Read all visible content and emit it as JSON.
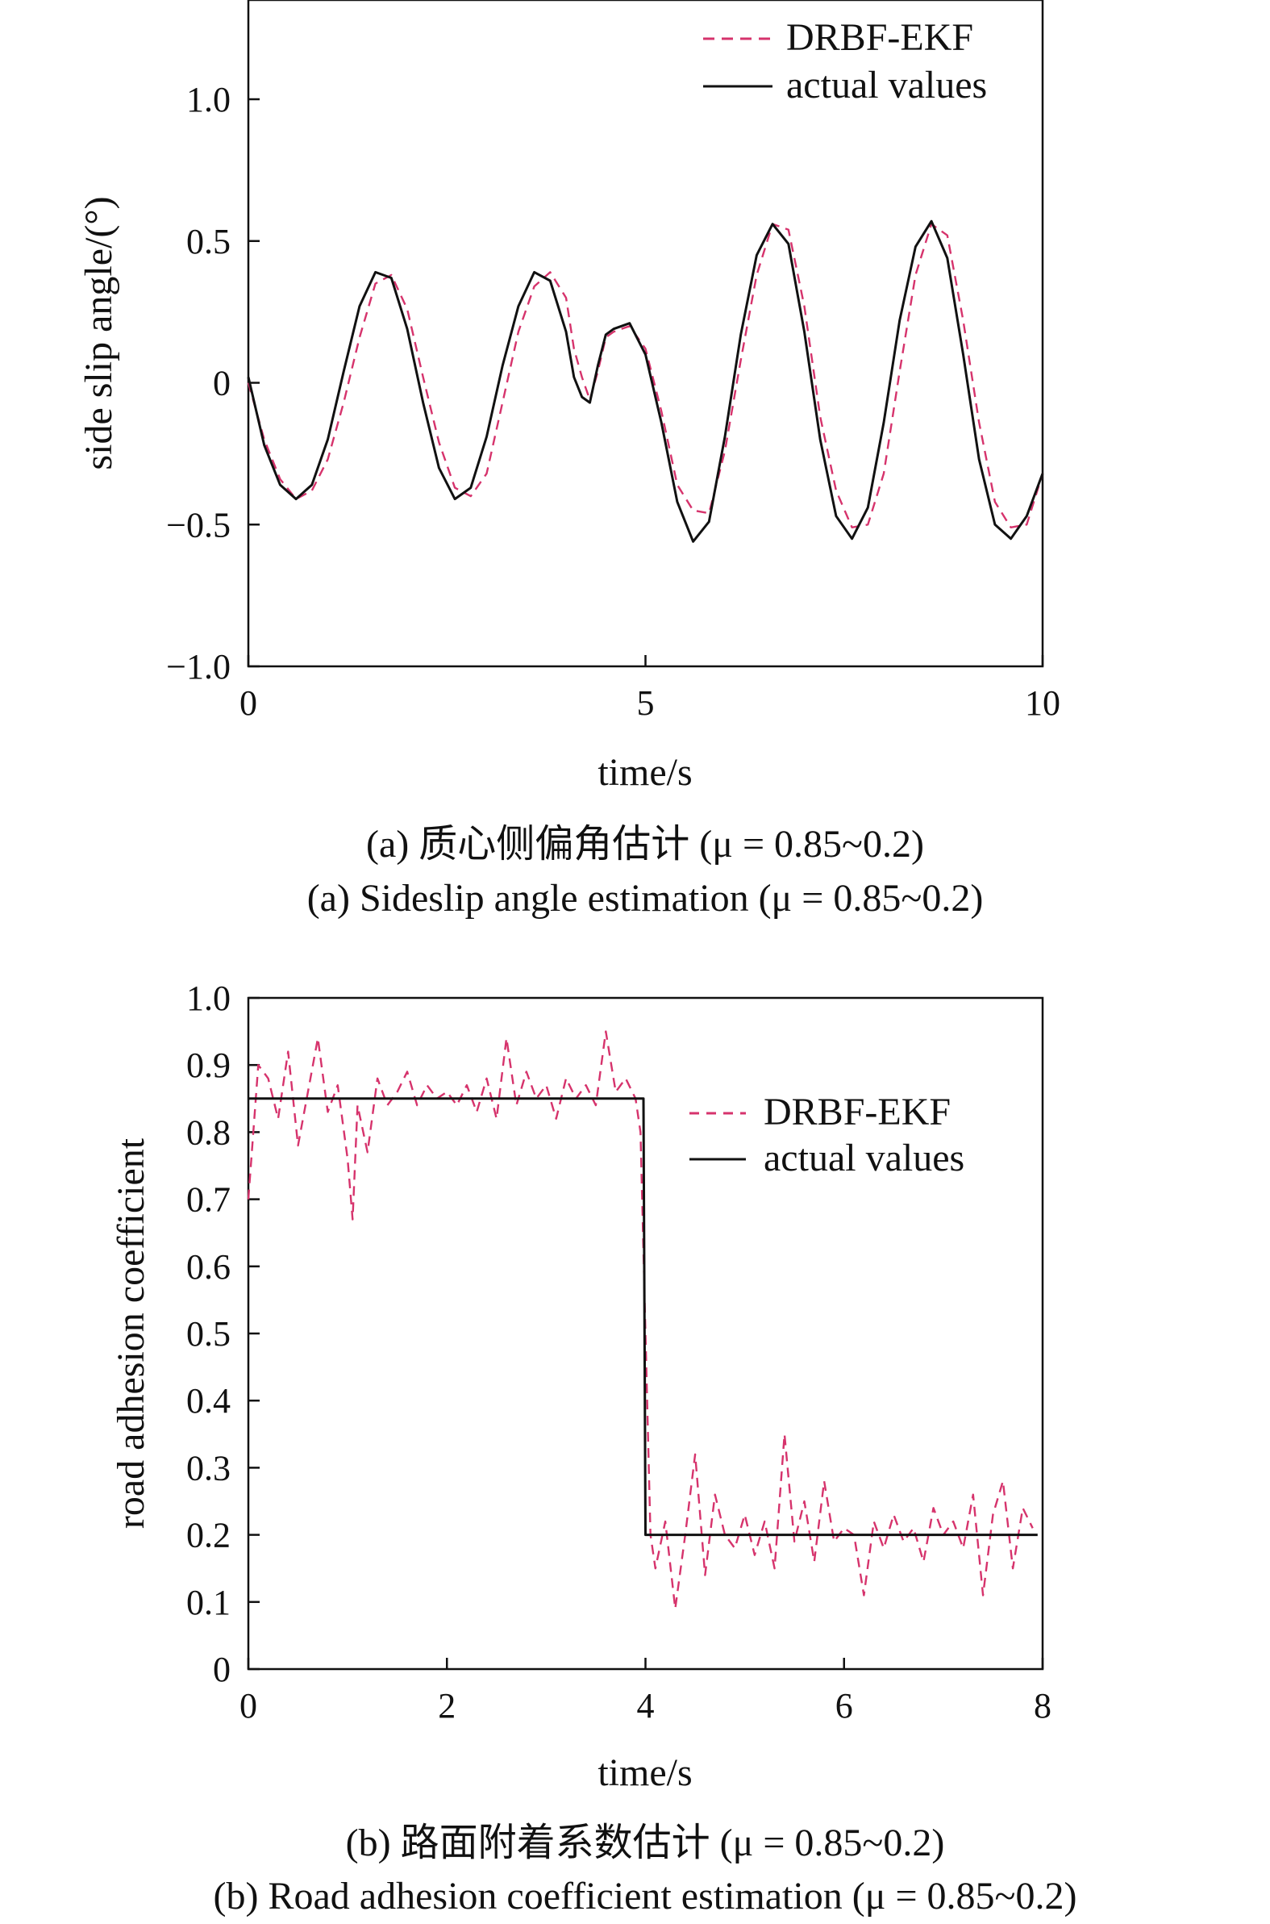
{
  "chart_data": [
    {
      "type": "line",
      "id": "a",
      "title": "",
      "xlabel": "time/s",
      "ylabel": "side slip angle/(°)",
      "xlim": [
        0,
        10
      ],
      "ylim": [
        -1.0,
        1.35
      ],
      "xticks": [
        0,
        5,
        10
      ],
      "xtick_labels": [
        "0",
        "5",
        "10"
      ],
      "yticks": [
        -1.0,
        -0.5,
        0,
        0.5,
        1.0
      ],
      "ytick_labels": [
        "−1.0",
        "−0.5",
        "0",
        "0.5",
        "1.0"
      ],
      "grid": false,
      "legend_position": "top-right",
      "caption_cn": "(a) 质心侧偏角估计 (μ = 0.85~0.2)",
      "caption_en": "(a) Sideslip angle estimation (μ = 0.85~0.2)",
      "series": [
        {
          "name": "DRBF-EKF",
          "style": "dashed",
          "color": "#d6336c",
          "x": [
            0,
            0.2,
            0.4,
            0.6,
            0.8,
            1.0,
            1.2,
            1.4,
            1.6,
            1.8,
            2.0,
            2.2,
            2.4,
            2.6,
            2.8,
            3.0,
            3.2,
            3.4,
            3.6,
            3.8,
            4.0,
            4.1,
            4.2,
            4.3,
            4.4,
            4.5,
            4.6,
            4.8,
            5.0,
            5.2,
            5.4,
            5.6,
            5.8,
            6.0,
            6.2,
            6.4,
            6.6,
            6.8,
            7.0,
            7.2,
            7.4,
            7.6,
            7.8,
            8.0,
            8.2,
            8.4,
            8.6,
            8.8,
            9.0,
            9.2,
            9.4,
            9.6,
            9.8,
            10.0
          ],
          "y": [
            0.0,
            -0.2,
            -0.34,
            -0.41,
            -0.38,
            -0.27,
            -0.07,
            0.16,
            0.35,
            0.38,
            0.26,
            0.02,
            -0.21,
            -0.37,
            -0.4,
            -0.32,
            -0.07,
            0.18,
            0.34,
            0.39,
            0.3,
            0.12,
            0.02,
            -0.06,
            0.04,
            0.16,
            0.18,
            0.2,
            0.12,
            -0.1,
            -0.36,
            -0.45,
            -0.46,
            -0.24,
            0.08,
            0.38,
            0.56,
            0.54,
            0.27,
            -0.12,
            -0.38,
            -0.51,
            -0.5,
            -0.32,
            0.04,
            0.38,
            0.56,
            0.52,
            0.22,
            -0.14,
            -0.42,
            -0.51,
            -0.5,
            -0.32
          ]
        },
        {
          "name": "actual values",
          "style": "solid",
          "color": "#111111",
          "x": [
            0,
            0.2,
            0.4,
            0.6,
            0.8,
            1.0,
            1.2,
            1.4,
            1.6,
            1.8,
            2.0,
            2.2,
            2.4,
            2.6,
            2.8,
            3.0,
            3.2,
            3.4,
            3.6,
            3.8,
            4.0,
            4.1,
            4.2,
            4.3,
            4.4,
            4.5,
            4.6,
            4.8,
            5.0,
            5.2,
            5.4,
            5.6,
            5.8,
            6.0,
            6.2,
            6.4,
            6.6,
            6.8,
            7.0,
            7.2,
            7.4,
            7.6,
            7.8,
            8.0,
            8.2,
            8.4,
            8.6,
            8.8,
            9.0,
            9.2,
            9.4,
            9.6,
            9.8,
            10.0
          ],
          "y": [
            0.02,
            -0.22,
            -0.36,
            -0.41,
            -0.36,
            -0.2,
            0.04,
            0.27,
            0.39,
            0.37,
            0.19,
            -0.07,
            -0.3,
            -0.41,
            -0.37,
            -0.19,
            0.06,
            0.27,
            0.39,
            0.36,
            0.18,
            0.02,
            -0.05,
            -0.07,
            0.06,
            0.17,
            0.19,
            0.21,
            0.1,
            -0.14,
            -0.42,
            -0.56,
            -0.49,
            -0.19,
            0.17,
            0.45,
            0.56,
            0.49,
            0.18,
            -0.2,
            -0.47,
            -0.55,
            -0.44,
            -0.14,
            0.22,
            0.48,
            0.57,
            0.44,
            0.1,
            -0.27,
            -0.5,
            -0.55,
            -0.47,
            -0.32
          ]
        }
      ]
    },
    {
      "type": "line",
      "id": "b",
      "title": "",
      "xlabel": "time/s",
      "ylabel": "road adhesion coefficient",
      "xlim": [
        0,
        8
      ],
      "ylim": [
        0,
        1.0
      ],
      "xticks": [
        0,
        2,
        4,
        6,
        8
      ],
      "xtick_labels": [
        "0",
        "2",
        "4",
        "6",
        "8"
      ],
      "yticks": [
        0,
        0.1,
        0.2,
        0.3,
        0.4,
        0.5,
        0.6,
        0.7,
        0.8,
        0.9,
        1.0
      ],
      "ytick_labels": [
        "0",
        "0.1",
        "0.2",
        "0.3",
        "0.4",
        "0.5",
        "0.6",
        "0.7",
        "0.8",
        "0.9",
        "1.0"
      ],
      "grid": false,
      "legend_position": "upper-right",
      "caption_cn": "(b) 路面附着系数估计 (μ = 0.85~0.2)",
      "caption_en": "(b) Road adhesion coefficient estimation (μ = 0.85~0.2)",
      "series": [
        {
          "name": "DRBF-EKF",
          "style": "dashed",
          "color": "#d6336c",
          "x": [
            0,
            0.1,
            0.2,
            0.3,
            0.4,
            0.5,
            0.6,
            0.7,
            0.8,
            0.9,
            1.0,
            1.05,
            1.1,
            1.2,
            1.3,
            1.4,
            1.5,
            1.6,
            1.7,
            1.8,
            1.9,
            2.0,
            2.1,
            2.2,
            2.3,
            2.4,
            2.5,
            2.6,
            2.7,
            2.8,
            2.9,
            3.0,
            3.1,
            3.2,
            3.3,
            3.4,
            3.5,
            3.6,
            3.7,
            3.8,
            3.9,
            3.95,
            4.05,
            4.1,
            4.2,
            4.3,
            4.4,
            4.5,
            4.6,
            4.7,
            4.8,
            4.9,
            5.0,
            5.1,
            5.2,
            5.3,
            5.4,
            5.5,
            5.6,
            5.7,
            5.8,
            5.9,
            6.0,
            6.1,
            6.2,
            6.3,
            6.4,
            6.5,
            6.6,
            6.7,
            6.8,
            6.9,
            7.0,
            7.1,
            7.2,
            7.3,
            7.4,
            7.5,
            7.6,
            7.7,
            7.8,
            7.9
          ],
          "y": [
            0.7,
            0.9,
            0.88,
            0.82,
            0.92,
            0.78,
            0.86,
            0.94,
            0.83,
            0.87,
            0.76,
            0.67,
            0.84,
            0.77,
            0.88,
            0.84,
            0.86,
            0.89,
            0.84,
            0.87,
            0.85,
            0.86,
            0.84,
            0.87,
            0.83,
            0.88,
            0.82,
            0.94,
            0.84,
            0.89,
            0.85,
            0.87,
            0.82,
            0.88,
            0.85,
            0.87,
            0.84,
            0.95,
            0.86,
            0.88,
            0.85,
            0.8,
            0.2,
            0.15,
            0.22,
            0.09,
            0.2,
            0.32,
            0.14,
            0.26,
            0.2,
            0.18,
            0.23,
            0.17,
            0.22,
            0.15,
            0.35,
            0.19,
            0.25,
            0.16,
            0.28,
            0.19,
            0.21,
            0.2,
            0.11,
            0.22,
            0.18,
            0.23,
            0.19,
            0.21,
            0.16,
            0.24,
            0.2,
            0.22,
            0.18,
            0.26,
            0.11,
            0.23,
            0.28,
            0.15,
            0.24,
            0.21
          ]
        },
        {
          "name": "actual values",
          "style": "solid",
          "color": "#111111",
          "x": [
            0,
            3.98,
            4.0,
            7.95
          ],
          "y": [
            0.85,
            0.85,
            0.2,
            0.2
          ]
        }
      ]
    }
  ]
}
